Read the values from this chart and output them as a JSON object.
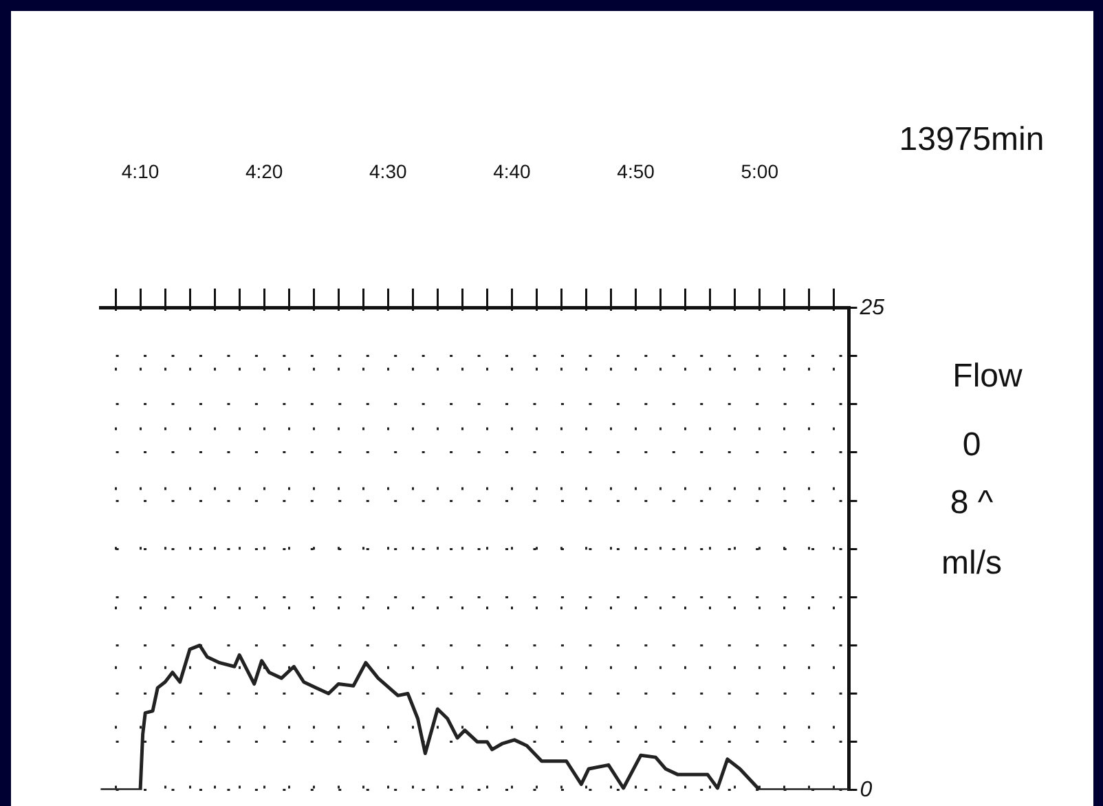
{
  "chart_data": {
    "type": "line",
    "ylabel": "Flow",
    "annotations": [
      "13975min",
      "0",
      "8 ^",
      "ml/s"
    ],
    "series": [
      {
        "color": "#222222",
        "x": [
          246.8,
          250,
          250.2,
          250.4,
          251,
          251.4,
          252,
          252.6,
          253.2,
          254,
          254.8,
          255.4,
          256.4,
          257.6,
          258,
          259.2,
          259.8,
          260.4,
          261.4,
          262.4,
          263.2,
          264.2,
          265.2,
          266,
          267.2,
          268.2,
          269.2,
          270.8,
          271.6,
          272.4,
          273,
          274,
          274.8,
          275.6,
          276.2,
          277.2,
          278,
          278.4,
          279.2,
          280.2,
          281.2,
          282.4,
          284.4,
          285.6,
          286.2,
          287.8,
          289,
          290.4,
          291.6,
          292.4,
          293.4,
          295.8,
          296.6,
          297.4,
          298.4,
          300,
          307.2
        ],
        "values": [
          0,
          0,
          2.9,
          4.0,
          4.1,
          5.3,
          5.6,
          6.1,
          5.6,
          7.3,
          7.5,
          6.9,
          6.6,
          6.4,
          7.0,
          5.5,
          6.7,
          6.1,
          5.8,
          6.4,
          5.6,
          5.3,
          5.0,
          5.5,
          5.4,
          6.6,
          5.8,
          4.9,
          5.0,
          3.7,
          1.9,
          4.2,
          3.7,
          2.7,
          3.1,
          2.5,
          2.5,
          2.1,
          2.4,
          2.6,
          2.3,
          1.5,
          1.5,
          0.3,
          1.1,
          1.3,
          0.1,
          1.8,
          1.7,
          1.1,
          0.8,
          0.8,
          0.1,
          1.6,
          1.1,
          0,
          0
        ]
      }
    ],
    "xlim": [
      246.8,
      307.2
    ],
    "xticks": [
      {
        "value": 248,
        "label": null
      },
      {
        "value": 250,
        "label": "4:10"
      },
      {
        "value": 252,
        "label": null
      },
      {
        "value": 254,
        "label": null
      },
      {
        "value": 256,
        "label": null
      },
      {
        "value": 258,
        "label": null
      },
      {
        "value": 260,
        "label": "4:20"
      },
      {
        "value": 262,
        "label": null
      },
      {
        "value": 264,
        "label": null
      },
      {
        "value": 266,
        "label": null
      },
      {
        "value": 268,
        "label": null
      },
      {
        "value": 270,
        "label": "4:30"
      },
      {
        "value": 272,
        "label": null
      },
      {
        "value": 274,
        "label": null
      },
      {
        "value": 276,
        "label": null
      },
      {
        "value": 278,
        "label": null
      },
      {
        "value": 280,
        "label": "4:40"
      },
      {
        "value": 282,
        "label": null
      },
      {
        "value": 284,
        "label": null
      },
      {
        "value": 286,
        "label": null
      },
      {
        "value": 288,
        "label": null
      },
      {
        "value": 290,
        "label": "4:50"
      },
      {
        "value": 292,
        "label": null
      },
      {
        "value": 294,
        "label": null
      },
      {
        "value": 296,
        "label": null
      },
      {
        "value": 298,
        "label": null
      },
      {
        "value": 300,
        "label": "5:00"
      },
      {
        "value": 302,
        "label": null
      },
      {
        "value": 304,
        "label": null
      },
      {
        "value": 306,
        "label": null
      }
    ],
    "ylim": [
      0,
      25
    ],
    "yticks": [
      0,
      {
        "value": 2.5,
        "label": null
      },
      {
        "value": 5,
        "label": null
      },
      {
        "value": 7.5,
        "label": null
      },
      {
        "value": 10,
        "label": null
      },
      {
        "value": 12.5,
        "label": null
      },
      {
        "value": 15,
        "label": null
      },
      {
        "value": 17.5,
        "label": null
      },
      {
        "value": 20,
        "label": null
      },
      {
        "value": 22.5,
        "label": null
      },
      25
    ],
    "grid": true,
    "legend": false,
    "marker": "none",
    "line_style": "solid"
  }
}
